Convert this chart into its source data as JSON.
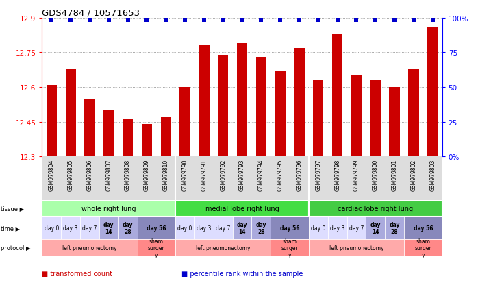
{
  "title": "GDS4784 / 10571653",
  "samples": [
    "GSM979804",
    "GSM979805",
    "GSM979806",
    "GSM979807",
    "GSM979808",
    "GSM979809",
    "GSM979810",
    "GSM979790",
    "GSM979791",
    "GSM979792",
    "GSM979793",
    "GSM979794",
    "GSM979795",
    "GSM979796",
    "GSM979797",
    "GSM979798",
    "GSM979799",
    "GSM979800",
    "GSM979801",
    "GSM979802",
    "GSM979803"
  ],
  "bar_values": [
    12.61,
    12.68,
    12.55,
    12.5,
    12.46,
    12.44,
    12.47,
    12.6,
    12.78,
    12.74,
    12.79,
    12.73,
    12.67,
    12.77,
    12.63,
    12.83,
    12.65,
    12.63,
    12.6,
    12.68,
    12.86
  ],
  "bar_color": "#cc0000",
  "percentile_color": "#0000cc",
  "ymin": 12.3,
  "ymax": 12.9,
  "yticks": [
    12.3,
    12.45,
    12.6,
    12.75,
    12.9
  ],
  "y2ticks": [
    0,
    25,
    50,
    75,
    100
  ],
  "tissue_groups": [
    {
      "label": "whole right lung",
      "start": 0,
      "end": 7,
      "color": "#aaffaa"
    },
    {
      "label": "medial lobe right lung",
      "start": 7,
      "end": 14,
      "color": "#44dd44"
    },
    {
      "label": "cardiac lobe right lung",
      "start": 14,
      "end": 21,
      "color": "#44cc44"
    }
  ],
  "protocol_groups": [
    {
      "label": "left pneumonectomy",
      "start": 0,
      "end": 5,
      "color": "#ffaaaa"
    },
    {
      "label": "sham\nsurger\ny",
      "start": 5,
      "end": 7,
      "color": "#ff8888"
    },
    {
      "label": "left pneumonectomy",
      "start": 7,
      "end": 12,
      "color": "#ffaaaa"
    },
    {
      "label": "sham\nsurger\ny",
      "start": 12,
      "end": 14,
      "color": "#ff8888"
    },
    {
      "label": "left pneumonectomy",
      "start": 14,
      "end": 19,
      "color": "#ffaaaa"
    },
    {
      "label": "sham\nsurger\ny",
      "start": 19,
      "end": 21,
      "color": "#ff8888"
    }
  ],
  "legend": [
    {
      "label": "transformed count",
      "color": "#cc0000"
    },
    {
      "label": "percentile rank within the sample",
      "color": "#0000cc"
    }
  ],
  "bg_color": "#ffffff",
  "label_color": "#bbbbbb"
}
